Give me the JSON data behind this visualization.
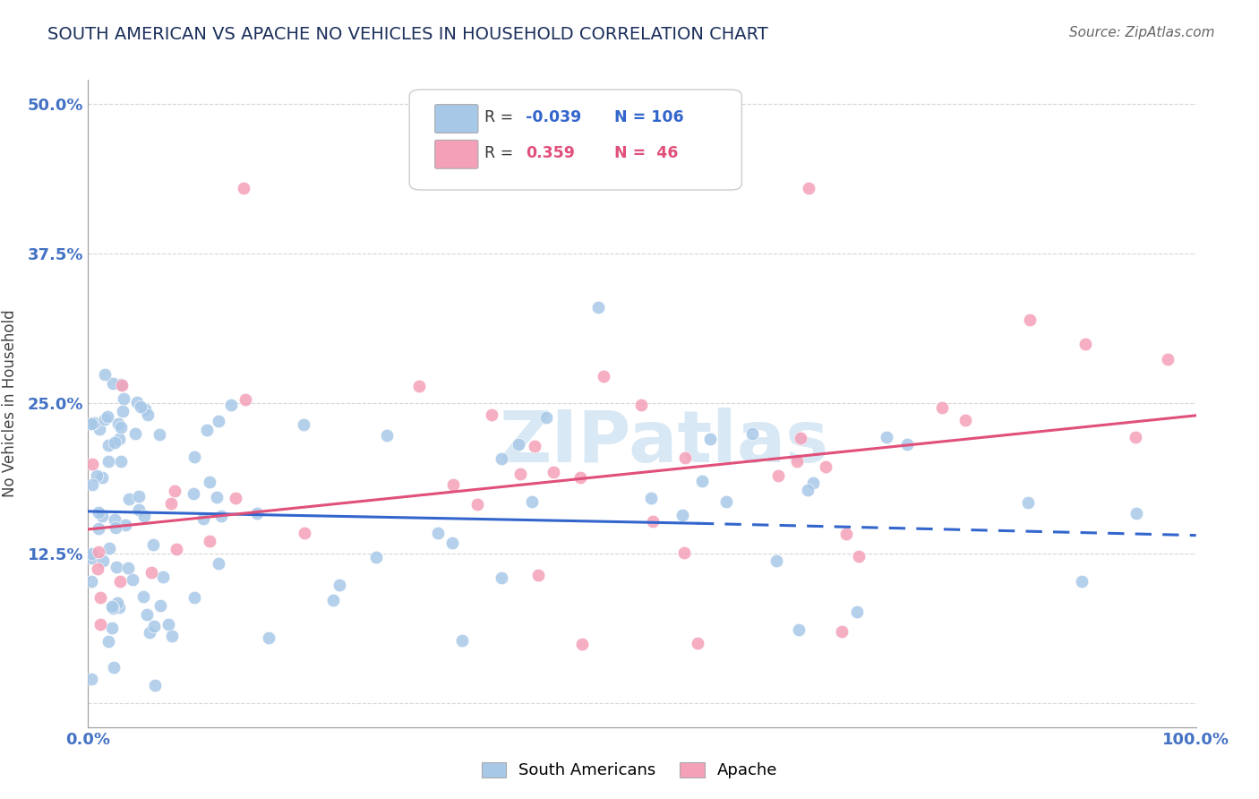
{
  "title": "SOUTH AMERICAN VS APACHE NO VEHICLES IN HOUSEHOLD CORRELATION CHART",
  "source": "Source: ZipAtlas.com",
  "ylabel": "No Vehicles in Household",
  "xlim": [
    0,
    100
  ],
  "ylim": [
    -2,
    52
  ],
  "yticks": [
    0,
    12.5,
    25.0,
    37.5,
    50.0
  ],
  "xticks": [
    0,
    25,
    50,
    75,
    100
  ],
  "blue_color": "#A8C8E8",
  "pink_color": "#F4A0B8",
  "blue_line_color": "#3366CC",
  "pink_line_color": "#E0507A",
  "watermark_color": "#D8E8F4",
  "grid_color": "#CCCCCC",
  "bg_color": "#FFFFFF",
  "title_color": "#1A2E5A",
  "tick_color": "#4472C4",
  "axis_color": "#999999"
}
